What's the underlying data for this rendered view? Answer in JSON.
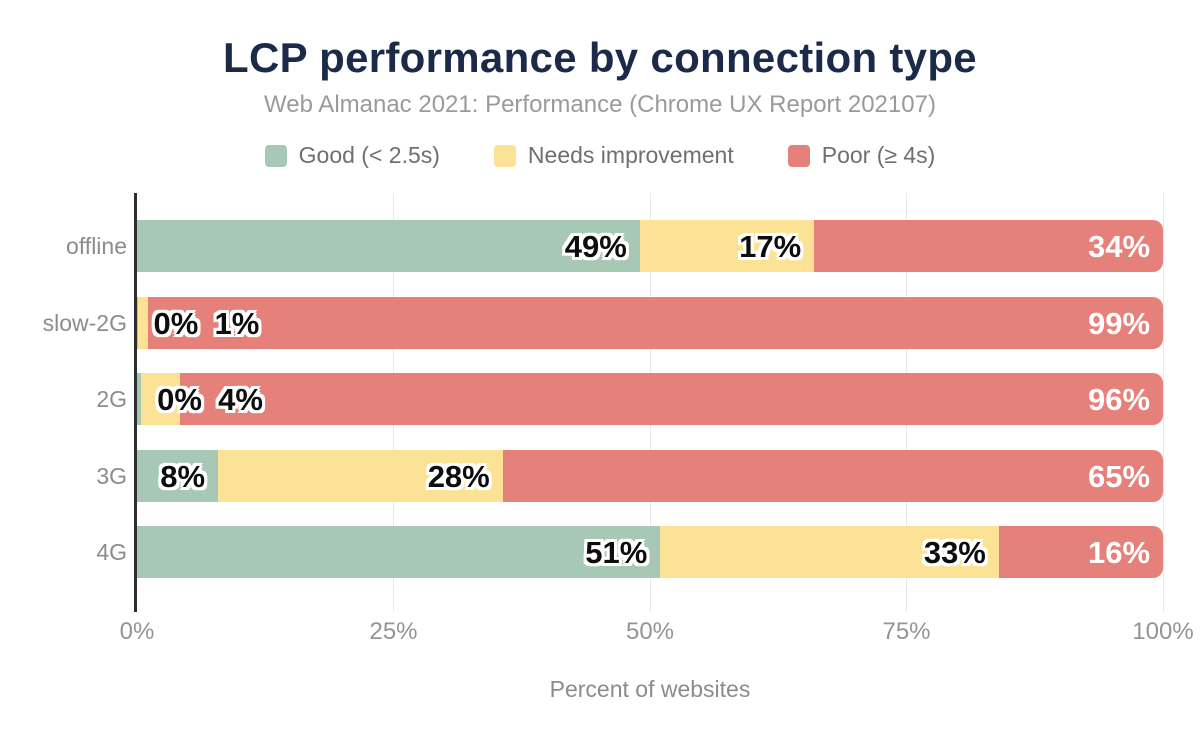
{
  "title": "LCP performance by connection type",
  "subtitle": "Web Almanac 2021: Performance (Chrome UX Report 202107)",
  "colors": {
    "good": "#a7c8b5",
    "needs_improvement": "#fbe295",
    "poor": "#e5817a",
    "title_text": "#1c2a49",
    "axis_text": "#8c8c8c",
    "gridline": "#e9e9e9",
    "axis_line": "#2e2e2e"
  },
  "legend": [
    {
      "label": "Good (< 2.5s)",
      "color": "#a7c8b5"
    },
    {
      "label": "Needs improvement",
      "color": "#fbe295"
    },
    {
      "label": "Poor (≥ 4s)",
      "color": "#e5817a"
    }
  ],
  "chart_data": {
    "type": "bar",
    "stacked": true,
    "orientation": "horizontal",
    "title": "LCP performance by connection type",
    "subtitle": "Web Almanac 2021: Performance (Chrome UX Report 202107)",
    "categories": [
      "offline",
      "slow-2G",
      "2G",
      "3G",
      "4G"
    ],
    "series": [
      {
        "name": "Good (< 2.5s)",
        "color": "#a7c8b5",
        "values": [
          49,
          0.05,
          0.4,
          8,
          51
        ],
        "labels": [
          "49%",
          "0%",
          "0%",
          "8%",
          "51%"
        ]
      },
      {
        "name": "Needs improvement",
        "color": "#fbe295",
        "values": [
          17,
          1,
          3.8,
          28,
          33
        ],
        "labels": [
          "17%",
          "1%",
          "4%",
          "28%",
          "33%"
        ]
      },
      {
        "name": "Poor (≥ 4s)",
        "color": "#e5817a",
        "values": [
          34,
          98.95,
          95.8,
          65,
          16
        ],
        "labels": [
          "34%",
          "99%",
          "96%",
          "65%",
          "16%"
        ]
      }
    ],
    "xlabel": "Percent of websites",
    "x_ticks": [
      "0%",
      "25%",
      "50%",
      "75%",
      "100%"
    ],
    "x_tick_values": [
      0,
      25,
      50,
      75,
      100
    ],
    "xlim": [
      0,
      100
    ],
    "grid": true,
    "legend_position": "top"
  }
}
